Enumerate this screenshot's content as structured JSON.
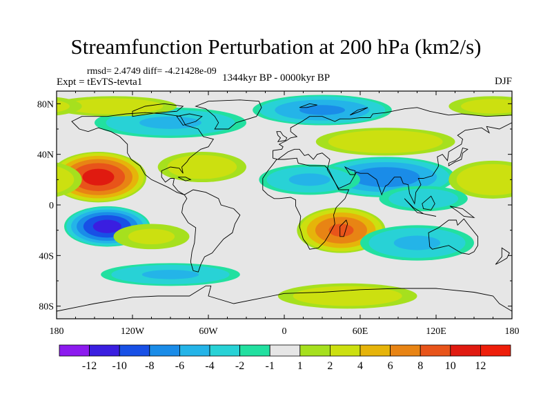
{
  "chart_data": {
    "type": "heatmap",
    "title": "Streamfunction Perturbation at 200 hPa (km2/s)",
    "stats_text": "rmsd= 2.4749 diff= -4.21428e-09",
    "experiment_text": "Expt = tEvTS-tevta1",
    "period_text": "1344kyr BP - 0000kyr BP",
    "season_text": "DJF",
    "xlim": [
      -180,
      180
    ],
    "ylim": [
      -90,
      90
    ],
    "x_ticks": [
      {
        "value": -180,
        "label": "180"
      },
      {
        "value": -120,
        "label": "120W"
      },
      {
        "value": -60,
        "label": "60W"
      },
      {
        "value": 0,
        "label": "0"
      },
      {
        "value": 60,
        "label": "60E"
      },
      {
        "value": 120,
        "label": "120E"
      },
      {
        "value": 180,
        "label": "180"
      }
    ],
    "y_ticks": [
      {
        "value": 80,
        "label": "80N"
      },
      {
        "value": 40,
        "label": "40N"
      },
      {
        "value": 0,
        "label": "0"
      },
      {
        "value": -40,
        "label": "40S"
      },
      {
        "value": -80,
        "label": "80S"
      }
    ],
    "colorbar": {
      "levels": [
        -12,
        -10,
        -8,
        -6,
        -4,
        -2,
        -1,
        1,
        2,
        4,
        6,
        8,
        10,
        12
      ],
      "labels": [
        "-12",
        "-10",
        "-8",
        "-6",
        "-4",
        "-2",
        "-1",
        "1",
        "2",
        "4",
        "6",
        "8",
        "10",
        "12"
      ],
      "colors": [
        "#8c1aef",
        "#3a1ee0",
        "#1850e6",
        "#1a8ce8",
        "#24b4e8",
        "#28d2d6",
        "#22e0a0",
        "#e6e6e6",
        "#a6e01e",
        "#cce010",
        "#e6b40a",
        "#e88414",
        "#e8541a",
        "#e01a10",
        "#ee1e0a"
      ]
    },
    "anomaly_centers": [
      {
        "lon": -147,
        "lat": 22,
        "value": 10.5,
        "rx": 38,
        "ry": 20
      },
      {
        "lon": -140,
        "lat": -17,
        "value": -10.5,
        "rx": 34,
        "ry": 16
      },
      {
        "lon": 80,
        "lat": 22,
        "value": -7,
        "rx": 55,
        "ry": 16
      },
      {
        "lon": 20,
        "lat": 20,
        "value": -4,
        "rx": 40,
        "ry": 12
      },
      {
        "lon": 45,
        "lat": -20,
        "value": 8,
        "rx": 35,
        "ry": 18
      },
      {
        "lon": 30,
        "lat": 75,
        "value": -6,
        "rx": 55,
        "ry": 12
      },
      {
        "lon": -90,
        "lat": 65,
        "value": -4,
        "rx": 60,
        "ry": 12
      },
      {
        "lon": 80,
        "lat": 50,
        "value": 3.5,
        "rx": 55,
        "ry": 11
      },
      {
        "lon": -65,
        "lat": 30,
        "value": 3,
        "rx": 35,
        "ry": 12
      },
      {
        "lon": 105,
        "lat": -30,
        "value": -4,
        "rx": 45,
        "ry": 14
      },
      {
        "lon": -135,
        "lat": 78,
        "value": 3,
        "rx": 50,
        "ry": 8
      },
      {
        "lon": 165,
        "lat": 78,
        "value": 2.5,
        "rx": 35,
        "ry": 8
      },
      {
        "lon": -90,
        "lat": -55,
        "value": -4,
        "rx": 55,
        "ry": 9
      },
      {
        "lon": 50,
        "lat": -72,
        "value": 3,
        "rx": 55,
        "ry": 10
      },
      {
        "lon": -105,
        "lat": -25,
        "value": 2,
        "rx": 30,
        "ry": 10
      },
      {
        "lon": 165,
        "lat": 20,
        "value": 3.5,
        "rx": 35,
        "ry": 15
      },
      {
        "lon": 110,
        "lat": 5,
        "value": -3,
        "rx": 35,
        "ry": 10
      }
    ]
  }
}
